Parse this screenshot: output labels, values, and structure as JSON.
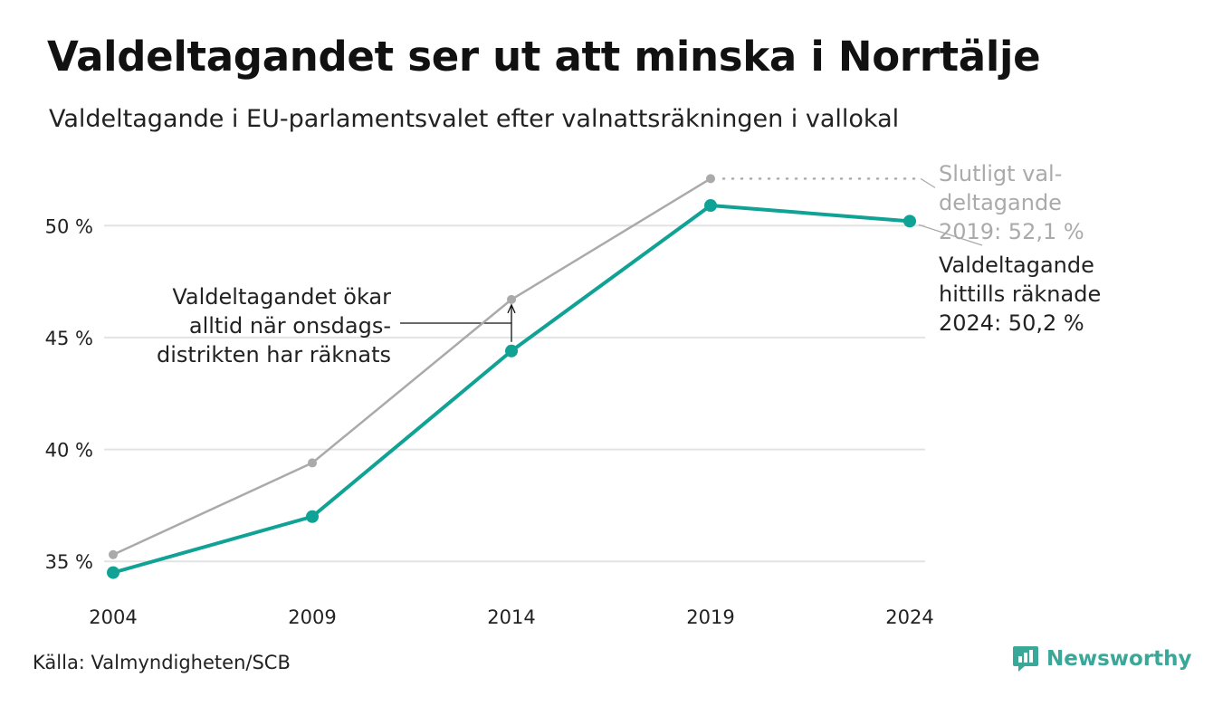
{
  "title": "Valdeltagandet ser ut att minska i Norrtälje",
  "subtitle": "Valdeltagande i EU-parlamentsvalet efter valnattsräkningen i vallokal",
  "source": "Källa: Valmyndigheten/SCB",
  "brand": "Newsworthy",
  "colors": {
    "current": "#0fa295",
    "final": "#aaaaaa",
    "grid": "#e3e3e3",
    "text": "#222222"
  },
  "chart_data": {
    "type": "line",
    "x": [
      "2004",
      "2009",
      "2014",
      "2019",
      "2024"
    ],
    "series": [
      {
        "key": "final",
        "values": [
          35.3,
          39.4,
          46.7,
          52.1,
          null
        ]
      },
      {
        "key": "current",
        "values": [
          34.5,
          37.0,
          44.4,
          50.9,
          50.2
        ]
      }
    ],
    "ylim": [
      34.2,
      52.6
    ],
    "yticks": [
      35,
      40,
      45,
      50
    ],
    "ytick_labels": [
      "35 %",
      "40 %",
      "45 %",
      "50 %"
    ],
    "grid": true,
    "annotations": {
      "middle": [
        "Valdeltagandet ökar",
        "alltid när onsdags-",
        "distrikten har räknats"
      ],
      "final": [
        "Slutligt val-",
        "deltagande",
        "2019: 52,1 %"
      ],
      "current": [
        "Valdeltagande",
        "hittills räknade",
        "2024: 50,2 %"
      ]
    }
  }
}
